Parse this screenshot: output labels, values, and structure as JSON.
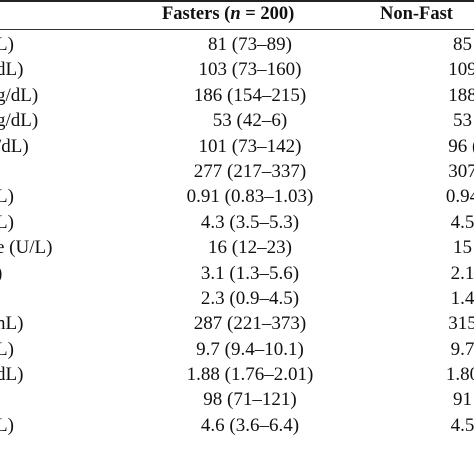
{
  "table": {
    "headers": {
      "fasters_prefix": "Fasters (",
      "fasters_n_symbol": "n",
      "fasters_suffix": " = 200)",
      "nonfasters": "Non-Fast"
    },
    "rows": [
      {
        "label": "L)",
        "fasters": "81 (73–89)",
        "nonfasters": "85 ("
      },
      {
        "label": "dL)",
        "fasters": "103 (73–160)",
        "nonfasters": "109 ("
      },
      {
        "label": "g/dL)",
        "fasters": "186 (154–215)",
        "nonfasters": "188 ("
      },
      {
        "label": "g/dL)",
        "fasters": "53 (42–6)",
        "nonfasters": "53 ("
      },
      {
        "label": "/dL)",
        "fasters": "101 (73–142)",
        "nonfasters": "96 (7"
      },
      {
        "label": "",
        "fasters": "277 (217–337)",
        "nonfasters": "307 ("
      },
      {
        "label": "L)",
        "fasters": "0.91 (0.83–1.03)",
        "nonfasters": "0.94 ("
      },
      {
        "label": "L)",
        "fasters": "4.3 (3.5–5.3)",
        "nonfasters": "4.5 ("
      },
      {
        "label": "e (U/L)",
        "fasters": "16 (12–23)",
        "nonfasters": "15 ("
      },
      {
        "label": ")",
        "fasters": "3.1 (1.3–5.6)",
        "nonfasters": "2.1 ("
      },
      {
        "label": "",
        "fasters": "2.3 (0.9–4.5)",
        "nonfasters": "1.4 ("
      },
      {
        "label": "nL)",
        "fasters": "287 (221–373)",
        "nonfasters": "315 ("
      },
      {
        "label": "L)",
        "fasters": "9.7 (9.4–10.1)",
        "nonfasters": "9.7 ("
      },
      {
        "label": "dL)",
        "fasters": "1.88 (1.76–2.01)",
        "nonfasters": "1.80 ("
      },
      {
        "label": "",
        "fasters": "98 (71–121)",
        "nonfasters": "91 ("
      },
      {
        "label": "L)",
        "fasters": "4.6 (3.6–6.4)",
        "nonfasters": "4.5 ("
      },
      {
        "label": "",
        "fasters": "",
        "nonfasters": ""
      }
    ]
  }
}
